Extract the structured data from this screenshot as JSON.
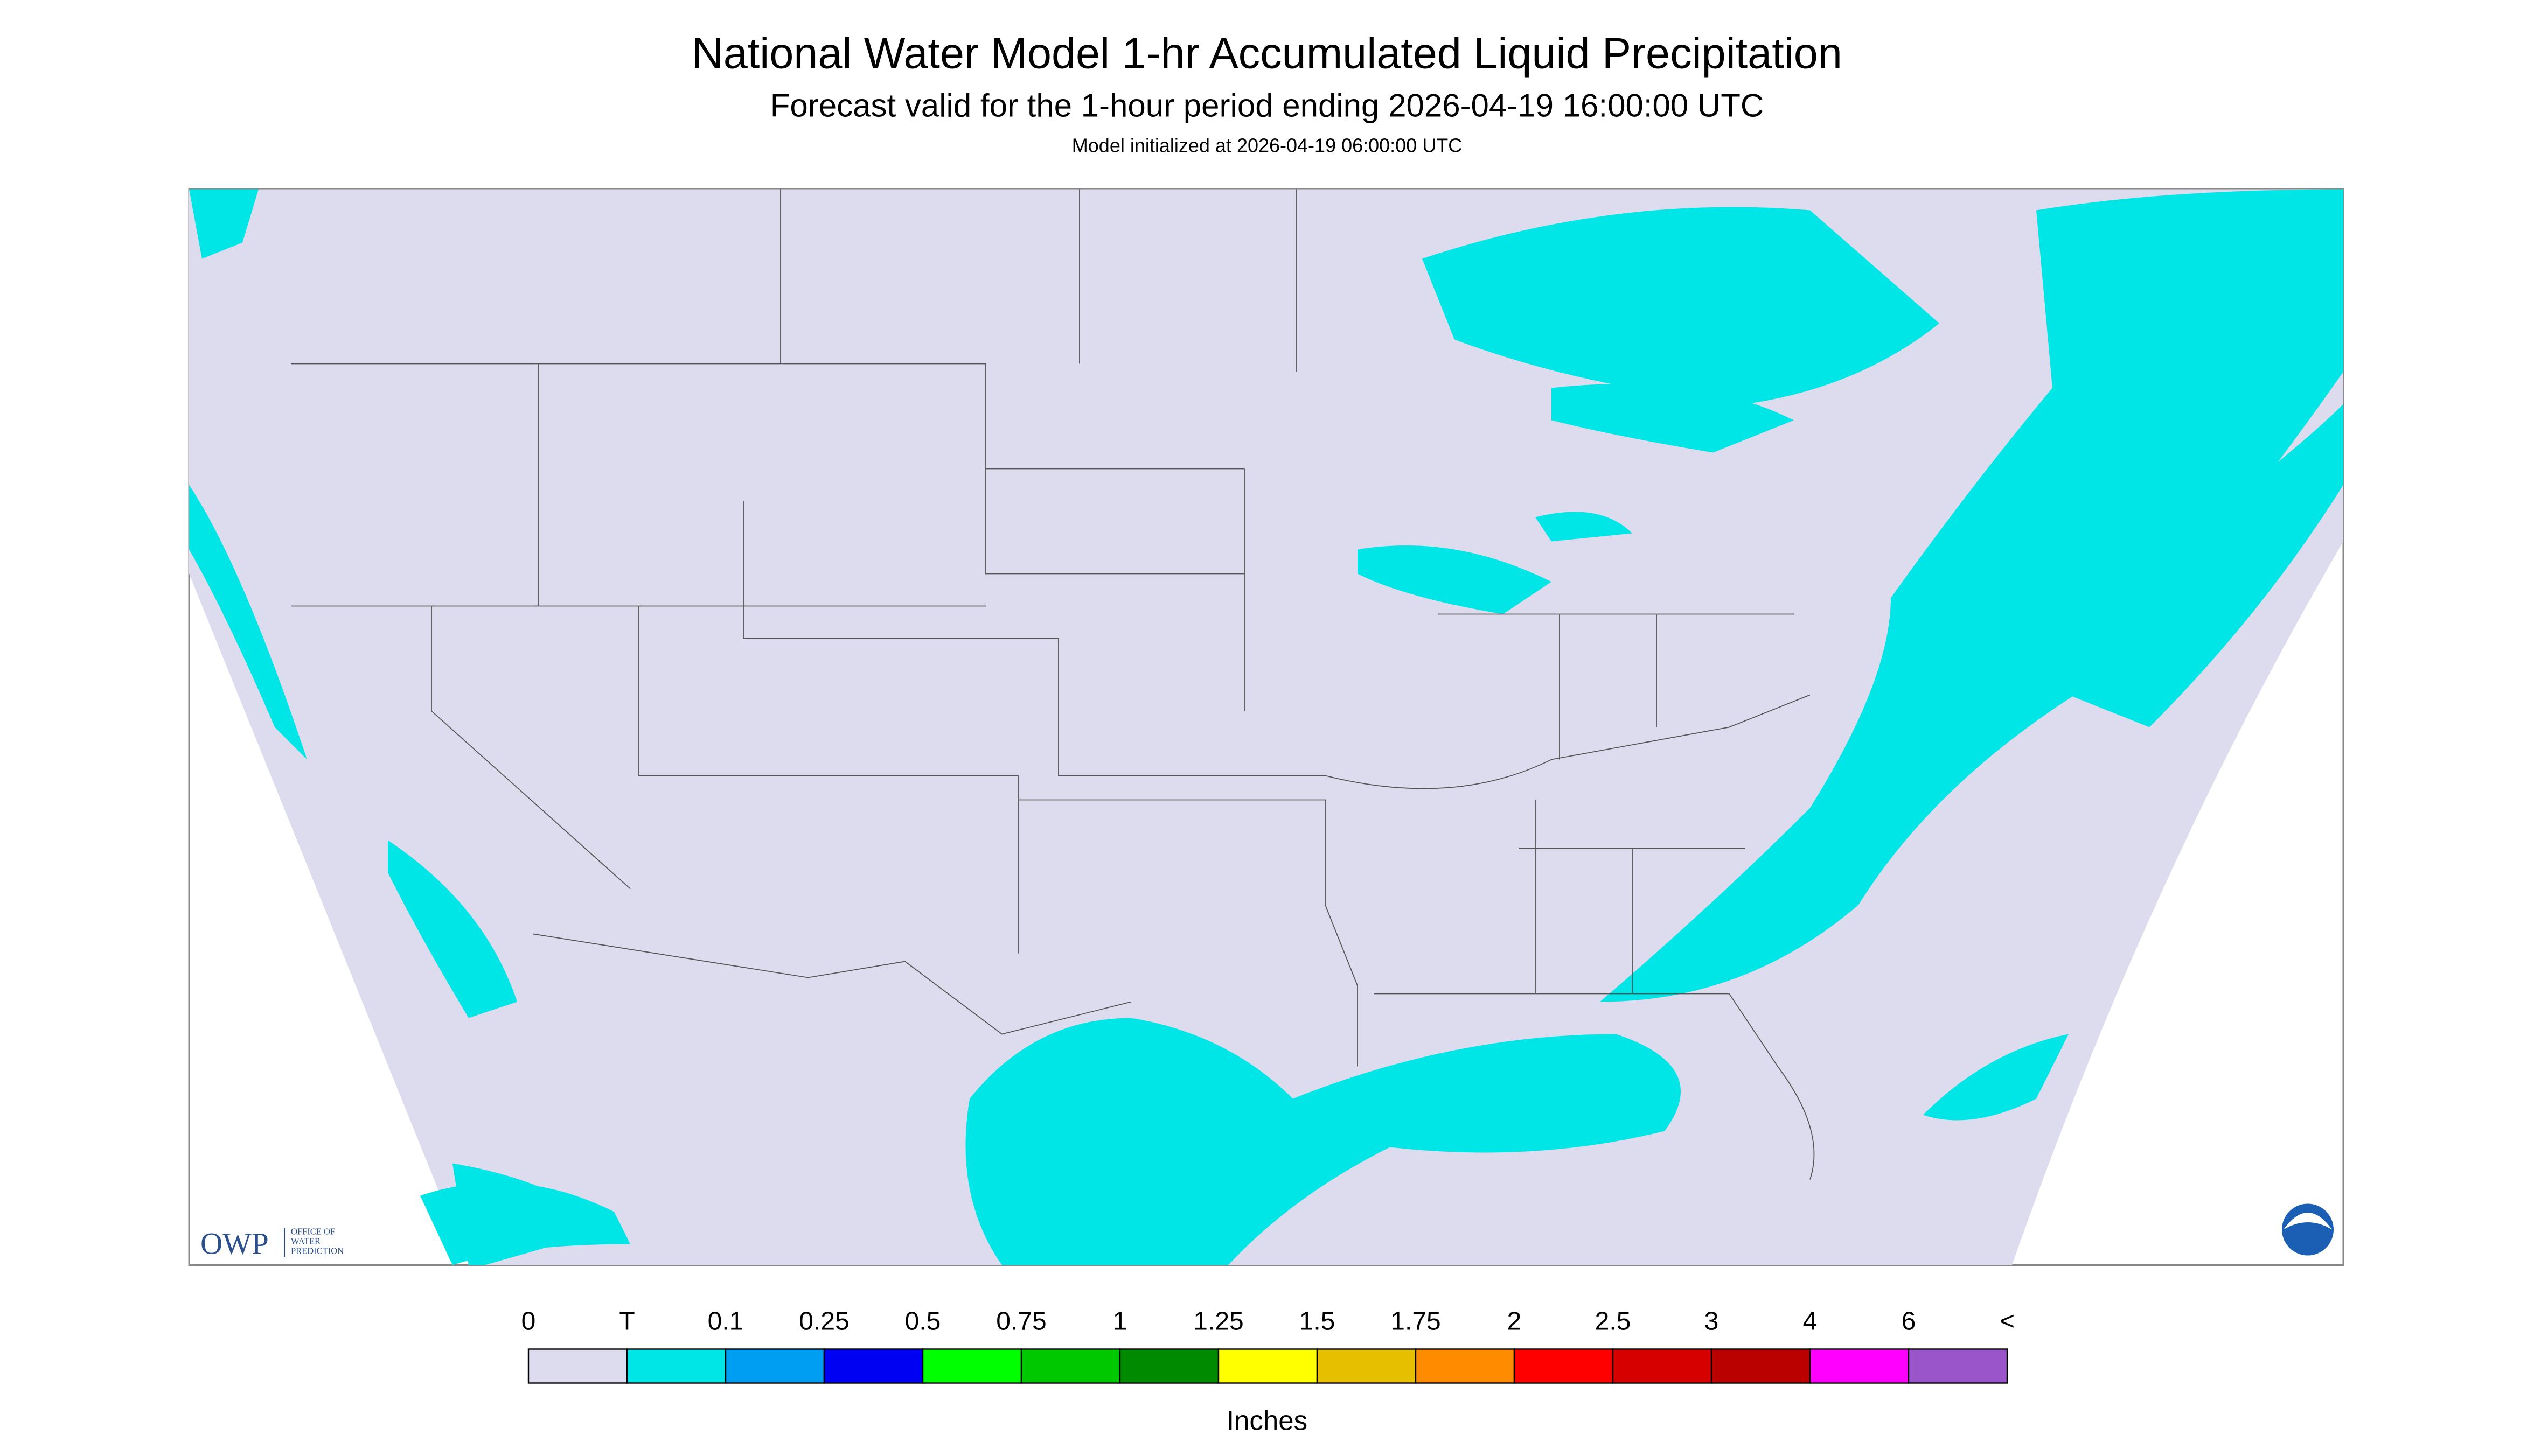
{
  "header": {
    "title": "National Water Model 1-hr Accumulated Liquid Precipitation",
    "subtitle": "Forecast valid for the 1-hour period ending 2026-04-19 16:00:00 UTC",
    "init": "Model initialized at 2026-04-19 06:00:00 UTC"
  },
  "logo": {
    "acronym": "OWP",
    "line1": "OFFICE OF",
    "line2": "WATER",
    "line3": "PREDICTION"
  },
  "legend": {
    "labels": [
      "0",
      "T",
      "0.1",
      "0.25",
      "0.5",
      "0.75",
      "1",
      "1.25",
      "1.5",
      "1.75",
      "2",
      "2.5",
      "3",
      "4",
      "6",
      "<"
    ],
    "colors": [
      "#dcdcee",
      "#00e5e5",
      "#009ef2",
      "#0000f2",
      "#00ff00",
      "#00c800",
      "#008a00",
      "#ffff00",
      "#e6c000",
      "#ff8c00",
      "#ff0000",
      "#d60000",
      "#bb0000",
      "#ff00ff",
      "#9955c9"
    ],
    "unit": "Inches"
  }
}
